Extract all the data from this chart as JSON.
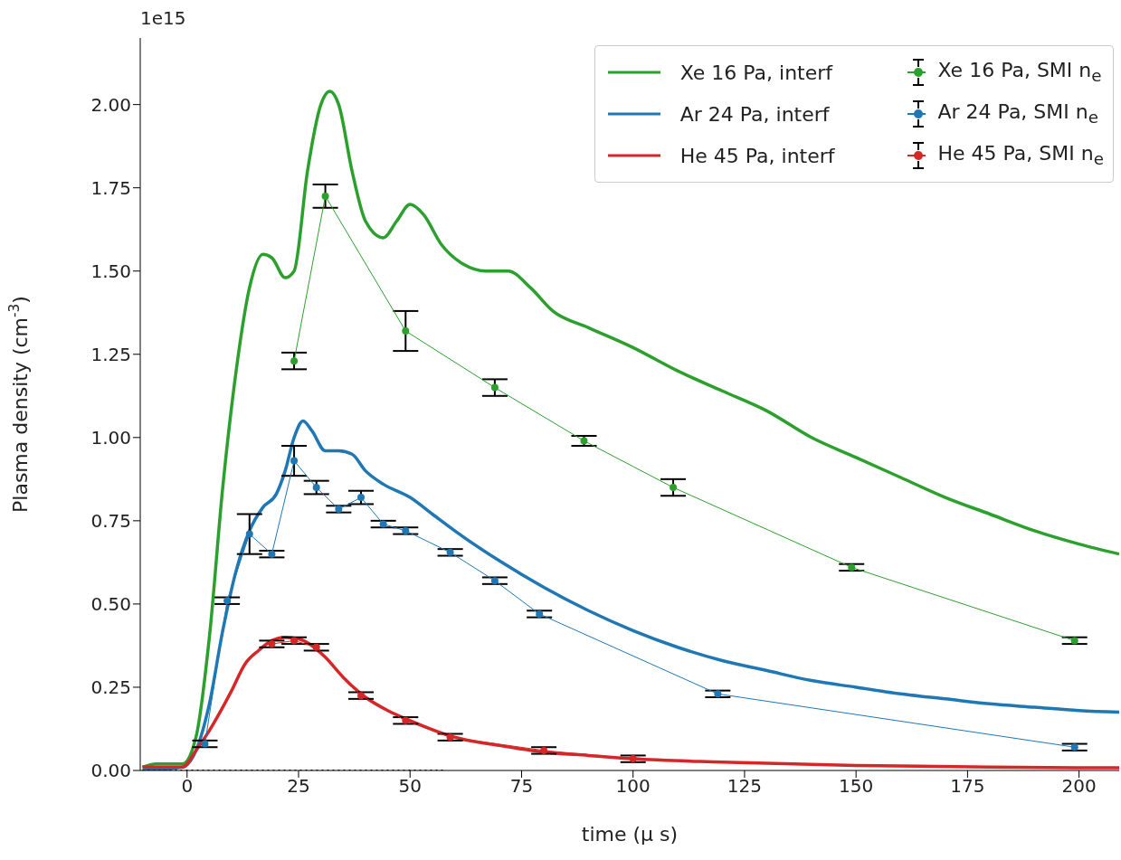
{
  "chart_data": {
    "type": "line",
    "xlabel": "time (μ s)",
    "ylabel": "Plasma density (cm$^{-3}$)",
    "annotations": [
      "1e15"
    ],
    "xlim": [
      -10.5,
      209
    ],
    "xticks": [
      0,
      25,
      50,
      75,
      100,
      125,
      150,
      175,
      200
    ],
    "ylim": [
      0,
      2.2
    ],
    "yticks": [
      {
        "value": 0,
        "label": "0.00"
      },
      0.25,
      {
        "value": 0.5,
        "label": "0.50"
      },
      0.75,
      {
        "value": 1,
        "label": "1.00"
      },
      1.25,
      {
        "value": 1.5,
        "label": "1.50"
      },
      1.75,
      {
        "value": 2,
        "label": "2.00"
      }
    ],
    "grid": false,
    "legend": "top right",
    "series": [
      {
        "name": "Xe 16 Pa, interf",
        "type": "line",
        "color": "#2ca02c",
        "line_style": "solid",
        "x": [
          -10,
          -7,
          -1,
          2,
          5,
          8,
          11,
          14,
          17,
          19,
          22,
          24,
          27,
          30,
          32,
          34,
          37,
          40,
          44,
          47,
          50,
          53,
          57,
          62,
          67,
          72,
          77,
          82,
          90,
          100,
          110,
          120,
          130,
          140,
          150,
          160,
          170,
          180,
          190,
          200,
          209
        ],
        "values": [
          0.01,
          0.02,
          0.02,
          0.1,
          0.4,
          0.85,
          1.2,
          1.45,
          1.55,
          1.54,
          1.48,
          1.5,
          1.8,
          2.0,
          2.04,
          2.0,
          1.8,
          1.65,
          1.6,
          1.65,
          1.7,
          1.67,
          1.58,
          1.52,
          1.5,
          1.5,
          1.45,
          1.38,
          1.33,
          1.27,
          1.2,
          1.14,
          1.08,
          1.0,
          0.94,
          0.88,
          0.82,
          0.77,
          0.72,
          0.68,
          0.65
        ]
      },
      {
        "name": "Ar 24 Pa, interf",
        "type": "line",
        "color": "#1f77b4",
        "line_style": "solid",
        "x": [
          -10,
          -1,
          2,
          5,
          8,
          11,
          14,
          17,
          20,
          22,
          24,
          26,
          28,
          31,
          34,
          37,
          40,
          44,
          50,
          55,
          60,
          70,
          80,
          90,
          100,
          110,
          120,
          130,
          140,
          150,
          160,
          170,
          180,
          190,
          200,
          209
        ],
        "values": [
          0.0,
          0.01,
          0.06,
          0.2,
          0.42,
          0.6,
          0.72,
          0.79,
          0.83,
          0.9,
          1.0,
          1.05,
          1.02,
          0.96,
          0.96,
          0.95,
          0.9,
          0.86,
          0.82,
          0.77,
          0.72,
          0.63,
          0.55,
          0.48,
          0.42,
          0.37,
          0.33,
          0.3,
          0.27,
          0.25,
          0.23,
          0.215,
          0.2,
          0.19,
          0.18,
          0.175
        ]
      },
      {
        "name": "He 45 Pa, interf",
        "type": "line",
        "color": "#d62728",
        "line_style": "solid",
        "x": [
          -10,
          -1,
          2,
          5,
          10,
          13,
          16,
          19,
          22,
          25,
          28,
          31,
          35,
          40,
          45,
          50,
          60,
          70,
          80,
          90,
          100,
          120,
          150,
          180,
          209
        ],
        "values": [
          0.01,
          0.01,
          0.06,
          0.12,
          0.24,
          0.32,
          0.36,
          0.39,
          0.4,
          0.395,
          0.375,
          0.34,
          0.28,
          0.22,
          0.18,
          0.15,
          0.1,
          0.075,
          0.055,
          0.045,
          0.035,
          0.025,
          0.015,
          0.01,
          0.008
        ]
      },
      {
        "name": "Xe 16 Pa, SMI n$_{e}$",
        "color": "#2ca02c",
        "marker": "circle",
        "x": [
          24,
          31,
          49,
          69,
          89,
          109,
          149,
          199
        ],
        "values": [
          1.23,
          1.725,
          1.32,
          1.15,
          0.99,
          0.85,
          0.61,
          0.39
        ],
        "errors": [
          0.025,
          0.035,
          0.06,
          0.025,
          0.015,
          0.025,
          0.01,
          0.01
        ]
      },
      {
        "name": "Ar 24 Pa, SMI n$_{e}$",
        "color": "#1f77b4",
        "marker": "circle",
        "x": [
          4,
          9,
          14,
          19,
          24,
          29,
          34,
          39,
          44,
          49,
          59,
          69,
          79,
          119,
          199
        ],
        "values": [
          0.08,
          0.51,
          0.71,
          0.65,
          0.93,
          0.85,
          0.785,
          0.82,
          0.74,
          0.72,
          0.655,
          0.57,
          0.47,
          0.23,
          0.07
        ],
        "errors": [
          0.01,
          0.01,
          0.06,
          0.01,
          0.045,
          0.02,
          0.01,
          0.02,
          0.01,
          0.01,
          0.01,
          0.01,
          0.01,
          0.01,
          0.01
        ]
      },
      {
        "name": "He 45 Pa, SMI n$_{e}$",
        "color": "#d62728",
        "marker": "circle",
        "x": [
          19,
          24,
          29,
          39,
          49,
          59,
          80,
          100
        ],
        "values": [
          0.38,
          0.39,
          0.37,
          0.225,
          0.15,
          0.1,
          0.06,
          0.035
        ],
        "errors": [
          0.01,
          0.01,
          0.01,
          0.01,
          0.01,
          0.01,
          0.01,
          0.01
        ]
      },
      {
        "color": "#000000",
        "line_style": "dotted",
        "x": [
          -10,
          58
        ],
        "values": [
          0,
          0
        ]
      }
    ]
  }
}
